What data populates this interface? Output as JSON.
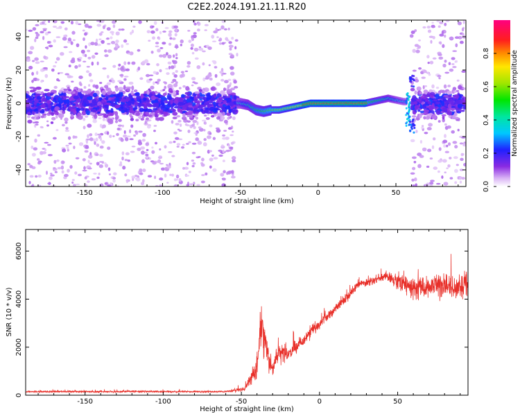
{
  "title": "C2E2.2024.191.21.11.R20",
  "chart_data": [
    {
      "type": "heatmap",
      "xlabel": "Height of straight line (km)",
      "ylabel": "Frequency (Hz)",
      "xlim": [
        -188,
        95
      ],
      "ylim": [
        -50,
        50
      ],
      "x_ticks": [
        -150,
        -100,
        -50,
        0,
        50
      ],
      "y_ticks": [
        -40,
        -20,
        0,
        20,
        40
      ],
      "colorbar": {
        "label": "Normalized spectral amplitude",
        "range": [
          0.0,
          1.0
        ],
        "ticks": [
          0.0,
          0.2,
          0.4,
          0.6,
          0.8
        ],
        "colormap": "rainbow (white-purple-blue-cyan-green-yellow-red-magenta)"
      },
      "regions": [
        {
          "x_range": [
            -188,
            -52
          ],
          "description": "noise: broad scatter, dense band near 0 Hz, amplitude ~0.05-0.25"
        },
        {
          "x_range": [
            -52,
            57
          ],
          "description": "signal: tight band near 0 Hz, amplitude rising to ~0.85 between -10 and 30 km"
        },
        {
          "x_range": [
            57,
            60
          ],
          "description": "frequency jump feature around +5 to -15 Hz"
        },
        {
          "x_range": [
            60,
            95
          ],
          "description": "noise: scattered band near 0 Hz"
        }
      ],
      "ridge_frequency": {
        "x": [
          -50,
          -45,
          -40,
          -35,
          -30,
          -25,
          -20,
          -15,
          -10,
          -5,
          0,
          5,
          10,
          15,
          20,
          25,
          30,
          35,
          40,
          45,
          50,
          55
        ],
        "y": [
          0,
          -1,
          -4,
          -5,
          -4,
          -4,
          -3,
          -2,
          -1,
          0,
          0,
          0,
          0,
          0,
          0,
          0,
          0,
          1,
          2,
          3,
          2,
          1
        ]
      }
    },
    {
      "type": "line",
      "xlabel": "Height of straight line (km)",
      "ylabel": "SNR (10 * v/v)",
      "xlim": [
        -188,
        95
      ],
      "ylim": [
        0,
        6900
      ],
      "x_ticks": [
        -150,
        -100,
        -50,
        0,
        50
      ],
      "y_ticks": [
        0,
        2000,
        4000,
        6000
      ],
      "color": "#e8302a",
      "series": [
        {
          "x": [
            -188,
            -150,
            -100,
            -60,
            -48,
            -44,
            -40,
            -37,
            -35,
            -32,
            -30,
            -28,
            -25,
            -20,
            -15,
            -10,
            -5,
            0,
            5,
            10,
            15,
            20,
            25,
            30,
            35,
            40,
            45,
            50,
            55,
            60,
            65,
            70,
            75,
            80,
            85,
            90,
            95
          ],
          "y": [
            150,
            150,
            150,
            150,
            250,
            700,
            1200,
            3100,
            2300,
            1300,
            1100,
            1500,
            1800,
            1700,
            2000,
            2300,
            2700,
            3000,
            3300,
            3600,
            3900,
            4300,
            4600,
            4700,
            4800,
            4900,
            4900,
            4700,
            4600,
            4500,
            4500,
            4500,
            4600,
            4600,
            4500,
            4500,
            4700
          ],
          "noise_amplitude": [
            60,
            60,
            60,
            60,
            150,
            400,
            1000,
            1500,
            1200,
            700,
            600,
            600,
            700,
            500,
            450,
            400,
            400,
            350,
            350,
            300,
            300,
            300,
            280,
            280,
            280,
            300,
            400,
            700,
            750,
            800,
            800,
            800,
            800,
            800,
            800,
            850,
            900
          ]
        }
      ]
    }
  ]
}
